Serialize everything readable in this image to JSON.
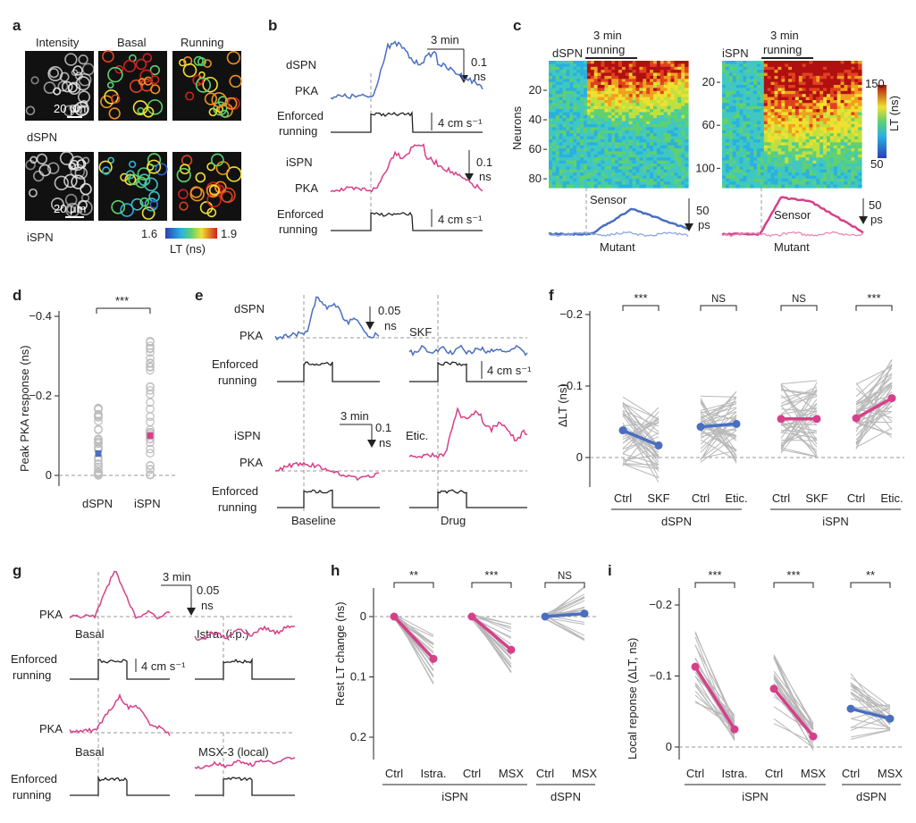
{
  "colors": {
    "dspn": "#4a6fc0",
    "ispn": "#d6408a",
    "light_dspn": "#8ea6dc",
    "light_ispn": "#e58ab7",
    "gray": "#b8b8b8",
    "trace": "#222222"
  },
  "panel_letters": [
    "a",
    "b",
    "c",
    "d",
    "e",
    "f",
    "g",
    "h",
    "i"
  ],
  "a": {
    "col_headers": [
      "Intensity",
      "Basal",
      "Running"
    ],
    "row_labels": [
      "dSPN",
      "iSPN"
    ],
    "scalebar": "20 μm",
    "colorbar_min": "1.6",
    "colorbar_max": "1.9",
    "colorbar_label": "LT (ns)"
  },
  "b": {
    "dspn_label": [
      "dSPN",
      "PKA"
    ],
    "ispn_label": [
      "iSPN",
      "PKA"
    ],
    "run_label": [
      "Enforced",
      "running"
    ],
    "time_scale": "3 min",
    "lt_scale": "0.1",
    "lt_unit": "ns",
    "speed_scale": "4 cm s⁻¹"
  },
  "c": {
    "left_title": "dSPN",
    "right_title": "iSPN",
    "bar_label": [
      "3 min",
      "running"
    ],
    "ylabel": "Neurons",
    "left_yticks": [
      "20",
      "40",
      "60",
      "80"
    ],
    "right_yticks": [
      "20",
      "60",
      "100"
    ],
    "colorbar_max": "150",
    "colorbar_min": "50",
    "colorbar_label": "LT (ns)",
    "sensor": "Sensor",
    "mutant": "Mutant",
    "scale": "50",
    "scale_unit": "ps"
  },
  "e": {
    "dspn_label": [
      "dSPN",
      "PKA"
    ],
    "ispn_label": [
      "iSPN",
      "PKA"
    ],
    "run_label": [
      "Enforced",
      "running"
    ],
    "lt_scale": "0.05",
    "lt_unit": "ns",
    "skf": "SKF",
    "speed_scale": "4 cm s⁻¹",
    "time_scale": "3 min",
    "lt_scale2": "0.1",
    "lt_unit2": "ns",
    "etic": "Etic.",
    "baseline": "Baseline",
    "drug": "Drug"
  },
  "g": {
    "pka": "PKA",
    "run_label": [
      "Enforced",
      "running"
    ],
    "time_scale": "3 min",
    "lt_scale": "0.05",
    "lt_unit": "ns",
    "basal": "Basal",
    "istra": "Istra. (i.p.)",
    "speed_scale": "4 cm s⁻¹",
    "msx": "MSX-3 (local)"
  },
  "chart_data": [
    {
      "panel": "d",
      "type": "scatter",
      "ylabel": "Peak PKA response (ns)",
      "ylim": [
        0,
        -0.4
      ],
      "yticks": [
        "−0.4",
        "−0.2",
        "0"
      ],
      "categories": [
        "dSPN",
        "iSPN"
      ],
      "means": [
        -0.055,
        -0.1
      ],
      "significance": "***"
    },
    {
      "panel": "f",
      "type": "line",
      "ylabel": "ΔLT (ns)",
      "ylim": [
        0,
        -0.2
      ],
      "yticks": [
        "−0.2",
        "−0.1",
        "0"
      ],
      "groups": [
        {
          "categories": [
            "Ctrl",
            "SKF"
          ],
          "means": [
            -0.038,
            -0.017
          ],
          "significance": "***",
          "cell": "dSPN"
        },
        {
          "categories": [
            "Ctrl",
            "Etic."
          ],
          "means": [
            -0.043,
            -0.047
          ],
          "significance": "NS",
          "cell": "dSPN"
        },
        {
          "categories": [
            "Ctrl",
            "SKF"
          ],
          "means": [
            -0.054,
            -0.054
          ],
          "significance": "NS",
          "cell": "iSPN"
        },
        {
          "categories": [
            "Ctrl",
            "Etic."
          ],
          "means": [
            -0.055,
            -0.083
          ],
          "significance": "***",
          "cell": "iSPN"
        }
      ],
      "group_labels": [
        "dSPN",
        "iSPN"
      ]
    },
    {
      "panel": "h",
      "type": "line",
      "ylabel": "Rest LT change (ns)",
      "ylim": [
        0,
        0.2
      ],
      "yticks": [
        "0",
        "0.1",
        "0.2"
      ],
      "groups": [
        {
          "categories": [
            "Ctrl",
            "Istra."
          ],
          "means": [
            0,
            0.07
          ],
          "significance": "**",
          "cell": "iSPN"
        },
        {
          "categories": [
            "Ctrl",
            "MSX"
          ],
          "means": [
            0,
            0.055
          ],
          "significance": "***",
          "cell": "iSPN"
        },
        {
          "categories": [
            "Ctrl",
            "MSX"
          ],
          "means": [
            0,
            -0.005
          ],
          "significance": "NS",
          "cell": "dSPN"
        }
      ],
      "group_labels": [
        "iSPN",
        "dSPN"
      ]
    },
    {
      "panel": "i",
      "type": "line",
      "ylabel": "Local reponse (ΔLT, ns)",
      "ylim": [
        0,
        -0.2
      ],
      "yticks": [
        "−0.2",
        "−0.1",
        "0"
      ],
      "groups": [
        {
          "categories": [
            "Ctrl",
            "Istra."
          ],
          "means": [
            -0.113,
            -0.025
          ],
          "significance": "***",
          "cell": "iSPN"
        },
        {
          "categories": [
            "Ctrl",
            "MSX"
          ],
          "means": [
            -0.082,
            -0.015
          ],
          "significance": "***",
          "cell": "iSPN"
        },
        {
          "categories": [
            "Ctrl",
            "MSX"
          ],
          "means": [
            -0.054,
            -0.04
          ],
          "significance": "**",
          "cell": "dSPN"
        }
      ],
      "group_labels": [
        "iSPN",
        "dSPN"
      ]
    }
  ]
}
